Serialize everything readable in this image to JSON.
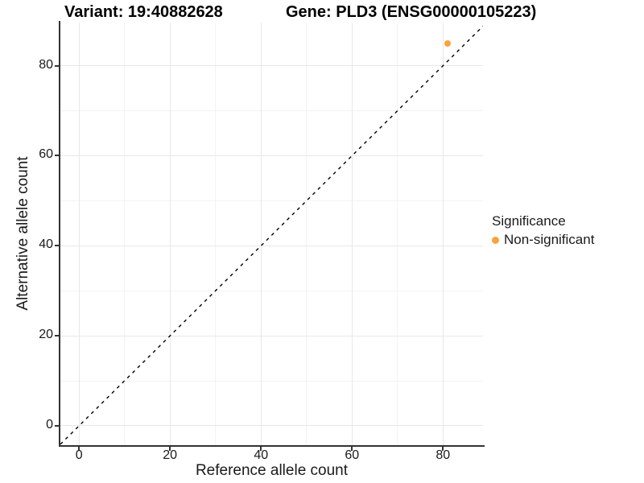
{
  "chart_data": {
    "type": "scatter",
    "titles": {
      "left": "Variant: 19:40882628",
      "right": "Gene: PLD3 (ENSG00000105223)"
    },
    "xlabel": "Reference allele count",
    "ylabel": "Alternative allele count",
    "xlim": [
      -4.1,
      88.8
    ],
    "ylim": [
      -4.3,
      89.6
    ],
    "x_major_ticks": [
      0,
      20,
      40,
      60,
      80
    ],
    "y_major_ticks": [
      0,
      20,
      40,
      60,
      80
    ],
    "x_minor_gridlines": [
      10,
      30,
      50,
      70
    ],
    "y_minor_gridlines": [
      10,
      30,
      50,
      70
    ],
    "grid": "major and minor light-gray gridlines on white panel",
    "identity_line": {
      "equation": "y = x",
      "style": "dashed",
      "color": "#000000"
    },
    "series": [
      {
        "name": "Non-significant",
        "color": "#F9A43C",
        "marker": "circle",
        "marker_size_px": 8,
        "points": [
          {
            "x": 81,
            "y": 85
          }
        ]
      }
    ],
    "legend": {
      "title": "Significance",
      "position": "right",
      "entries": [
        {
          "label": "Non-significant",
          "color": "#F9A43C"
        }
      ]
    }
  }
}
